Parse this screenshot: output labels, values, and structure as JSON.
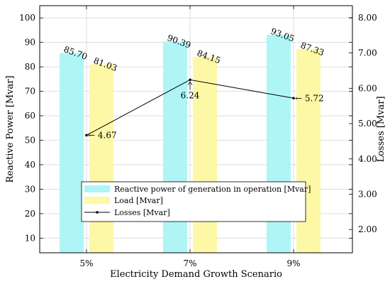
{
  "chart_data": {
    "type": "bar",
    "xlabel": "Electricity Demand Growth Scenario",
    "ylabel": "Reactive Power [Mvar]",
    "y2label": "Losses [Mvar]",
    "categories": [
      "5%",
      "7%",
      "9%"
    ],
    "ylim": [
      4,
      105
    ],
    "y2lim": [
      1.34,
      8.34
    ],
    "yticks": [
      "10",
      "20",
      "30",
      "40",
      "50",
      "60",
      "70",
      "80",
      "90",
      "100"
    ],
    "y2ticks": [
      "2.00",
      "3.00",
      "4.00",
      "5.00",
      "6.00",
      "7.00",
      "8.00"
    ],
    "grid": true,
    "legend_position": "bottom-center",
    "series": [
      {
        "name": "Reactive power of generation in operation [Mvar]",
        "type": "bar",
        "axis": "left",
        "color": "#aff5f5",
        "values": [
          85.7,
          90.39,
          93.05
        ],
        "labels": [
          "85.70",
          "90.39",
          "93.05"
        ]
      },
      {
        "name": "Load [Mvar]",
        "type": "bar",
        "axis": "left",
        "color": "#fcf8a6",
        "values": [
          81.03,
          84.15,
          87.33
        ],
        "labels": [
          "81.03",
          "84.15",
          "87.33"
        ]
      },
      {
        "name": "Losses [Mvar]",
        "type": "line",
        "axis": "right",
        "color": "#000000",
        "values": [
          4.67,
          6.24,
          5.72
        ],
        "labels": [
          "← 4.67",
          "6.24",
          "← 5.72"
        ]
      }
    ]
  }
}
